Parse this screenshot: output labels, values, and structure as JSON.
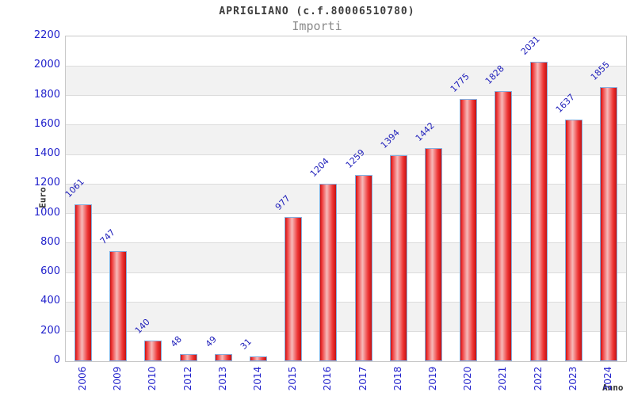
{
  "header": {
    "title": "APRIGLIANO (c.f.80006510780)",
    "subtitle": "Importi"
  },
  "chart_data": {
    "type": "bar",
    "title": "APRIGLIANO (c.f.80006510780)",
    "subtitle": "Importi",
    "xlabel": "Anno",
    "ylabel": "Euro",
    "categories": [
      "2006",
      "2009",
      "2010",
      "2012",
      "2013",
      "2014",
      "2015",
      "2016",
      "2017",
      "2018",
      "2019",
      "2020",
      "2021",
      "2022",
      "2023",
      "2024"
    ],
    "values": [
      1061,
      747,
      140,
      48,
      49,
      31,
      977,
      1204,
      1259,
      1394,
      1442,
      1775,
      1828,
      2031,
      1637,
      1855
    ],
    "ylim": [
      0,
      2200
    ],
    "ytick_step": 200,
    "grid": "horizontal-bands",
    "legend": "none",
    "colors": {
      "bar_gradient": [
        "#c41212",
        "#ee3434",
        "#f6baba",
        "#ee3434",
        "#c41212"
      ],
      "bar_edge": "#85aede",
      "value_label": "#2222bb",
      "axis_text": "#2222cc",
      "band": "#f2f2f2",
      "gridline": "#dcdcdc",
      "plot_border": "#c8c8c8"
    }
  }
}
